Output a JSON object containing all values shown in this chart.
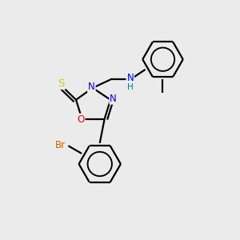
{
  "background_color": "#ebebeb",
  "bond_color": "#000000",
  "atom_colors": {
    "S": "#cccc00",
    "O": "#ff0000",
    "N": "#0000ff",
    "H": "#008080",
    "Br": "#cc6600",
    "C": "#000000"
  },
  "bond_lw": 1.6,
  "font_size": 8.5
}
